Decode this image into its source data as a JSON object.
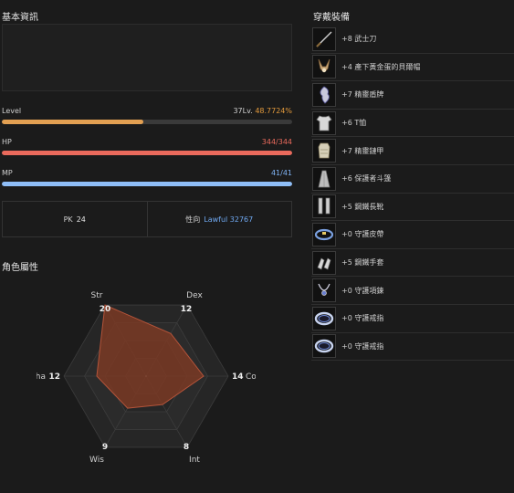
{
  "basic_info": {
    "title": "基本資訊",
    "level": {
      "label": "Level",
      "level_text": "37Lv.",
      "percent_text": "48.7724%",
      "fraction": 0.487724
    },
    "hp": {
      "label": "HP",
      "value_text": "344/344",
      "fraction": 1.0
    },
    "mp": {
      "label": "MP",
      "value_text": "41/41",
      "fraction": 1.0
    },
    "pk": {
      "label": "PK",
      "value": "24"
    },
    "alignment": {
      "label": "性向",
      "value": "Lawful 32767"
    }
  },
  "attributes": {
    "title": "角色屬性",
    "max": 20,
    "stats": [
      {
        "name": "Str",
        "value": 20
      },
      {
        "name": "Dex",
        "value": 12
      },
      {
        "name": "Con",
        "value": 14
      },
      {
        "name": "Int",
        "value": 8
      },
      {
        "name": "Wis",
        "value": 9
      },
      {
        "name": "Cha",
        "value": 12
      }
    ],
    "colors": {
      "fill": "#7a3a25",
      "stroke": "#b5543a",
      "grid": "#3c3c3c",
      "band": "#262626"
    }
  },
  "equipment": {
    "title": "穿戴裝備",
    "items": [
      {
        "name": "+8 武士刀",
        "icon": "katana-icon"
      },
      {
        "name": "+4 產下黃金蛋的貝爾帽",
        "icon": "bunny-hat-icon"
      },
      {
        "name": "+7 精靈盾牌",
        "icon": "elven-shield-icon"
      },
      {
        "name": "+6 T恤",
        "icon": "t-shirt-icon"
      },
      {
        "name": "+7 精靈鏈甲",
        "icon": "chainmail-icon"
      },
      {
        "name": "+6 保護者斗篷",
        "icon": "cloak-icon"
      },
      {
        "name": "+5 鋼鐵長靴",
        "icon": "boots-icon"
      },
      {
        "name": "+0 守護皮帶",
        "icon": "belt-icon"
      },
      {
        "name": "+5 鋼鐵手套",
        "icon": "gloves-icon"
      },
      {
        "name": "+0 守護項鍊",
        "icon": "necklace-icon"
      },
      {
        "name": "+0 守護戒指",
        "icon": "ring-icon"
      },
      {
        "name": "+0 守護戒指",
        "icon": "ring-icon"
      }
    ]
  }
}
